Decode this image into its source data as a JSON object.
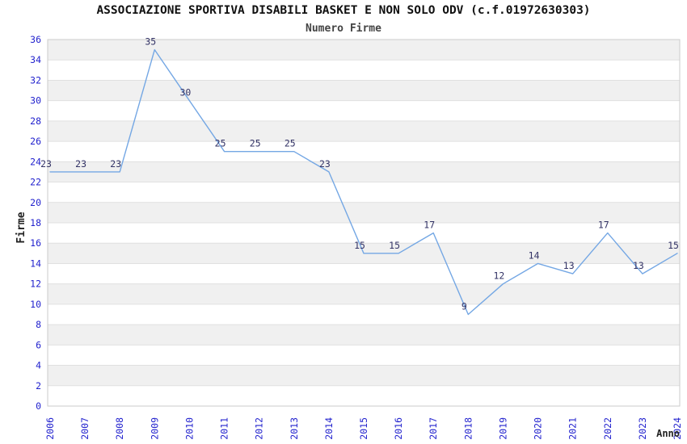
{
  "header": {
    "title": "ASSOCIAZIONE SPORTIVA DISABILI BASKET E NON SOLO ODV (c.f.01972630303)",
    "subtitle": "Numero Firme"
  },
  "chart_data": {
    "type": "line",
    "title": "ASSOCIAZIONE SPORTIVA DISABILI BASKET E NON SOLO ODV (c.f.01972630303)",
    "subtitle": "Numero Firme",
    "x": [
      "2006",
      "2007",
      "2008",
      "2009",
      "2010",
      "2011",
      "2012",
      "2013",
      "2014",
      "2015",
      "2016",
      "2017",
      "2018",
      "2019",
      "2020",
      "2021",
      "2022",
      "2023",
      "2024"
    ],
    "series": [
      {
        "name": "Numero Firme",
        "values": [
          23,
          23,
          23,
          35,
          30,
          25,
          25,
          25,
          23,
          15,
          15,
          17,
          9,
          12,
          14,
          13,
          17,
          13,
          15
        ]
      }
    ],
    "xlabel": "Anno",
    "ylabel": "Firme",
    "ylim": [
      0,
      36
    ],
    "ytick_step": 2,
    "grid": "horizontal gridlines with alternating 2-unit shaded bands",
    "legend": "none",
    "data_labels": true
  },
  "colors": {
    "line": "#74A7E4",
    "axis_tick_label": "#2323CE",
    "data_label": "#333366",
    "band_fill": "#F0F0F0",
    "gridline": "#E0E0E0",
    "plot_border": "#CBCBCB",
    "title_text": "#111111",
    "subtitle_text": "#444444",
    "axis_title_text": "#222222",
    "background": "#FFFFFF"
  }
}
